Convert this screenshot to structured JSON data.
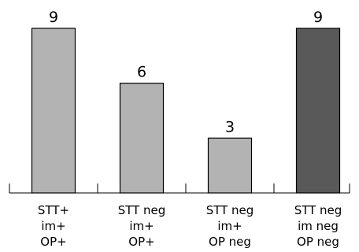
{
  "chart_data": {
    "type": "bar",
    "categories": [
      [
        "STT+",
        "im+",
        "OP+"
      ],
      [
        "STT neg",
        "im+",
        "OP+"
      ],
      [
        "STT neg",
        "im+",
        "OP neg"
      ],
      [
        "STT neg",
        "im neg",
        "OP neg"
      ]
    ],
    "values": [
      9,
      6,
      3,
      9
    ],
    "data_labels": [
      "9",
      "6",
      "3",
      "9"
    ],
    "bar_colors": [
      "#b3b3b3",
      "#b3b3b3",
      "#b3b3b3",
      "#595959"
    ],
    "title": "",
    "xlabel": "",
    "ylabel": "",
    "ylim": [
      0,
      9
    ],
    "grid": false,
    "legend": "none"
  }
}
